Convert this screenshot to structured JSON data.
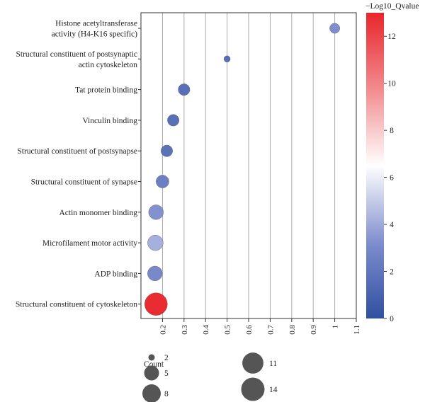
{
  "chart_data": {
    "type": "scatter",
    "title": "",
    "xlabel": "",
    "ylabel": "",
    "xlim": [
      0.1,
      1.1
    ],
    "x_ticks": [
      0.2,
      0.3,
      0.4,
      0.5,
      0.6,
      0.7,
      0.8,
      0.9,
      1,
      1.1
    ],
    "grid": "vertical lines",
    "categories": [
      "Histone acetyltransferase activity (H4-K16 specific)",
      "Structural constituent of postsynaptic actin cytoskeleton",
      "Tat protein binding",
      "Vinculin binding",
      "Structural constituent of postsynapse",
      "Structural constituent of synapse",
      "Actin monomer binding",
      "Microfilament motor activity",
      "ADP binding",
      "Structural constituent of cytoskeleton"
    ],
    "category_lines": [
      [
        "Histone acetyltransferase",
        "activity (H4-K16 specific)"
      ],
      [
        "Structural constituent of postsynaptic",
        "actin cytoskeleton"
      ],
      [
        "Tat protein binding"
      ],
      [
        "Vinculin binding"
      ],
      [
        "Structural constituent of postsynapse"
      ],
      [
        "Structural constituent of synapse"
      ],
      [
        "Actin monomer binding"
      ],
      [
        "Microfilament motor activity"
      ],
      [
        "ADP binding"
      ],
      [
        "Structural constituent of cytoskeleton"
      ]
    ],
    "x": [
      1.0,
      0.5,
      0.3,
      0.25,
      0.22,
      0.2,
      0.17,
      0.167,
      0.165,
      0.17
    ],
    "count": [
      2,
      1,
      3,
      3,
      3,
      4,
      6,
      7,
      6,
      20
    ],
    "neg_log10_qvalue": [
      3.2,
      1.6,
      1.7,
      1.7,
      1.8,
      2.5,
      3.3,
      4.2,
      3.0,
      12.8
    ],
    "colorbar": {
      "title": "−Log10_Qvalue",
      "range": [
        0,
        13
      ],
      "ticks": [
        0,
        2,
        4,
        6,
        8,
        10,
        12
      ],
      "colors": {
        "low": "#3050a0",
        "mid": "#ffffff",
        "high": "#e8262b"
      }
    },
    "size_legend": {
      "title": "Count",
      "values": [
        2,
        5,
        8,
        11,
        14
      ]
    }
  }
}
